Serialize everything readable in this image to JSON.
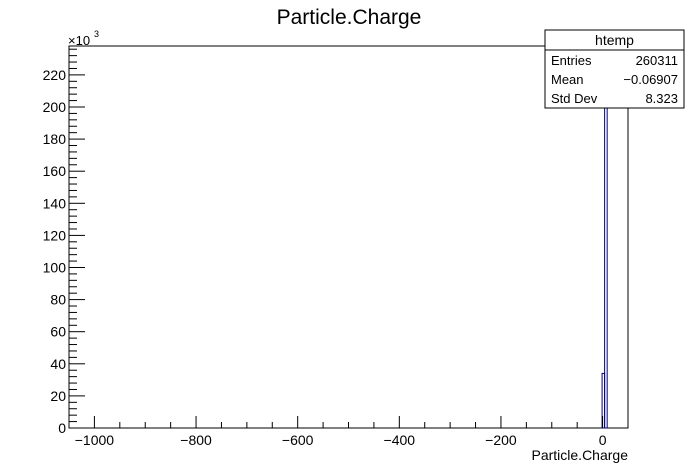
{
  "chart_data": {
    "type": "bar",
    "title": "Particle.Charge",
    "xlabel": "Particle.Charge",
    "ylabel": "",
    "y_multiplier_label": "×10",
    "y_multiplier_exponent": "3",
    "xlim": [
      -1050,
      50
    ],
    "ylim": [
      0,
      238
    ],
    "x_ticks": [
      -1000,
      -800,
      -600,
      -400,
      -200,
      0
    ],
    "x_tick_labels": [
      "−1000",
      "−800",
      "−600",
      "−400",
      "−200",
      "0"
    ],
    "y_ticks": [
      0,
      20,
      40,
      60,
      80,
      100,
      120,
      140,
      160,
      180,
      200,
      220
    ],
    "y_tick_labels": [
      "0",
      "20",
      "40",
      "60",
      "80",
      "100",
      "120",
      "140",
      "160",
      "180",
      "200",
      "220"
    ],
    "bin_width": 5,
    "bins": [
      {
        "x0": -1,
        "x1": 4,
        "value": 34
      },
      {
        "x0": 4,
        "x1": 9,
        "value": 238
      }
    ],
    "grid": false,
    "line_color": "#00007a"
  },
  "stats_box": {
    "title": "htemp",
    "rows": [
      {
        "label": "Entries",
        "value": "260311"
      },
      {
        "label": "Mean",
        "value": "−0.06907"
      },
      {
        "label": "Std Dev",
        "value": "8.323"
      }
    ]
  }
}
